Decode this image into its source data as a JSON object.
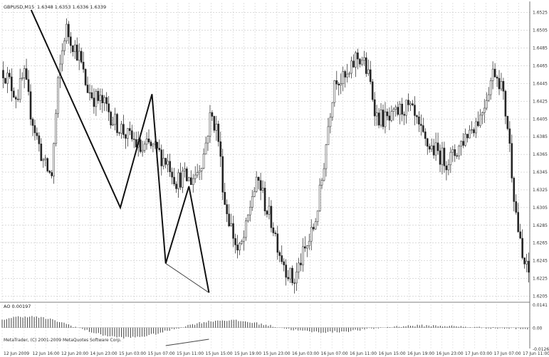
{
  "window": {
    "title": "GBPUSD,M15",
    "ohlc": "1.6348 1.6353 1.6336 1.6339"
  },
  "chart_data": [
    {
      "type": "candlestick",
      "symbol": "GBPUSD,M15",
      "ylim": [
        1.6199,
        1.6536
      ],
      "y_ticks": [
        "1.6525",
        "1.6505",
        "1.6485",
        "1.6465",
        "1.6445",
        "1.6425",
        "1.6405",
        "1.6385",
        "1.6365",
        "1.6345",
        "1.6325",
        "1.6305",
        "1.6285",
        "1.6265",
        "1.6245",
        "1.6225",
        "1.6205"
      ],
      "x_ticks": [
        "12 Jun 2009",
        "12 Jun 16:00",
        "12 Jun 20:00",
        "14 Jun 23:00",
        "15 Jun 03:00",
        "15 Jun 07:00",
        "15 Jun 11:00",
        "15 Jun 15:00",
        "15 Jun 19:00",
        "15 Jun 23:00",
        "16 Jun 03:00",
        "16 Jun 07:00",
        "16 Jun 11:00",
        "16 Jun 15:00",
        "16 Jun 19:00",
        "16 Jun 23:00",
        "17 Jun 03:00",
        "17 Jun 07:00",
        "17 Jun 11:00"
      ],
      "price_path": [
        1.646,
        1.6445,
        1.643,
        1.6455,
        1.6412,
        1.638,
        1.6352,
        1.634,
        1.645,
        1.6508,
        1.6492,
        1.6475,
        1.6442,
        1.643,
        1.6425,
        1.6418,
        1.6402,
        1.6395,
        1.6385,
        1.638,
        1.6368,
        1.6375,
        1.637,
        1.6362,
        1.6355,
        1.6335,
        1.634,
        1.6335,
        1.6345,
        1.6365,
        1.641,
        1.6392,
        1.6312,
        1.6282,
        1.6252,
        1.6275,
        1.632,
        1.6335,
        1.6305,
        1.6285,
        1.6255,
        1.6235,
        1.622,
        1.6245,
        1.6262,
        1.6285,
        1.633,
        1.6398,
        1.6455,
        1.6448,
        1.6452,
        1.6475,
        1.6472,
        1.6448,
        1.6408,
        1.6405,
        1.6402,
        1.6412,
        1.6418,
        1.6414,
        1.6395,
        1.6378,
        1.6372,
        1.6366,
        1.6358,
        1.6362,
        1.6375,
        1.6388,
        1.6398,
        1.6408,
        1.6435,
        1.6462,
        1.6445,
        1.6395,
        1.631,
        1.6248,
        1.623
      ],
      "zigzag": [
        [
          0.055,
          1.6528
        ],
        [
          0.224,
          1.6305
        ],
        [
          0.284,
          1.6433
        ],
        [
          0.31,
          1.6242
        ],
        [
          0.354,
          1.6329
        ],
        [
          0.392,
          1.6209
        ]
      ],
      "divergence_price_line": [
        [
          0.31,
          1.6242
        ],
        [
          0.392,
          1.6209
        ]
      ]
    },
    {
      "type": "bar",
      "indicator": "AO",
      "label": "AO 0.00197",
      "ylim": [
        -0.0126,
        0.0141
      ],
      "y_ticks": [
        "0.0141",
        "0.00",
        "-0.0126"
      ]
    }
  ],
  "footer": {
    "copyright": "MetaTrader, (C) 2001-2009 MetaQuotes Software Corp."
  }
}
